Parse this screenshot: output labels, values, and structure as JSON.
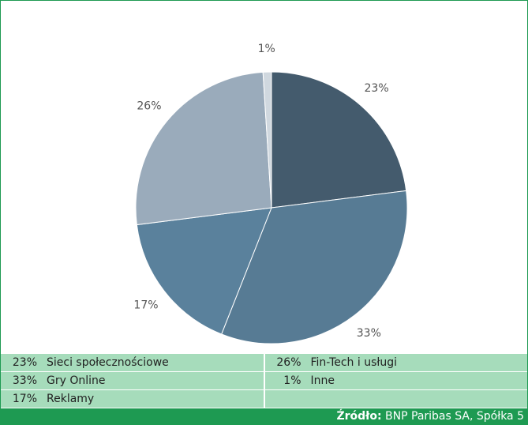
{
  "chart_data": {
    "type": "pie",
    "categories": [
      "Sieci społecznościowe",
      "Gry Online",
      "Reklamy",
      "Fin-Tech i usługi",
      "Inne"
    ],
    "values": [
      23,
      33,
      17,
      26,
      1
    ],
    "value_labels": [
      "23%",
      "33%",
      "17%",
      "26%",
      "1%"
    ],
    "colors": [
      "#445b6d",
      "#577b94",
      "#5a819c",
      "#9aabbb",
      "#d0d8df"
    ],
    "source_label": "Źródło:",
    "source": "BNP Paribas SA, Spółka 5"
  }
}
